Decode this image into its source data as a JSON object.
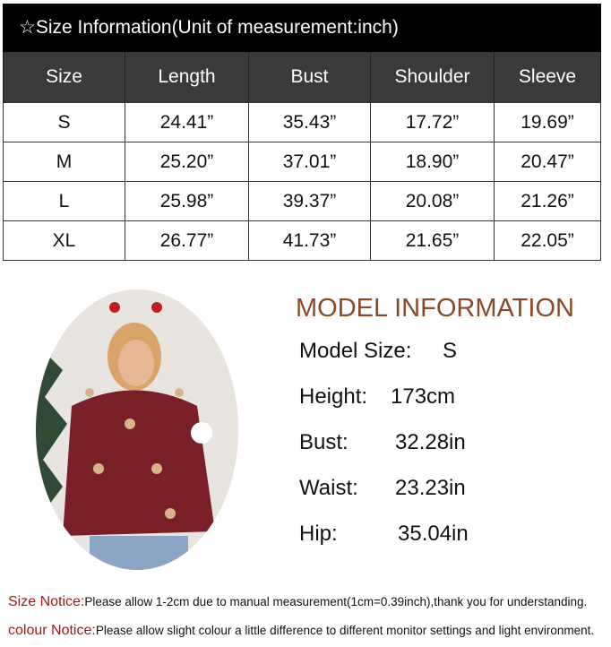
{
  "size_table": {
    "title": "☆Size Information(Unit of measurement:inch)",
    "headers": [
      "Size",
      "Length",
      "Bust",
      "Shoulder",
      "Sleeve"
    ],
    "rows": [
      [
        "S",
        "24.41”",
        "35.43”",
        "17.72”",
        "19.69”"
      ],
      [
        "M",
        "25.20”",
        "37.01”",
        "18.90”",
        "20.47”"
      ],
      [
        "L",
        "25.98”",
        "39.37”",
        "20.08”",
        "21.26”"
      ],
      [
        "XL",
        "26.77”",
        "41.73”",
        "21.65”",
        "22.05”"
      ]
    ]
  },
  "model": {
    "title": "MODEL INFORMATION",
    "lines": [
      {
        "label": "Model Size:",
        "value": "S"
      },
      {
        "label": "Height:",
        "value": "173cm"
      },
      {
        "label": "Bust:",
        "value": "32.28in"
      },
      {
        "label": "Waist:",
        "value": "23.23in"
      },
      {
        "label": "Hip:",
        "value": "35.04in"
      }
    ]
  },
  "notices": [
    {
      "label": "Size Notice:",
      "text": "Please allow 1-2cm due to manual measurement(1cm=0.39inch),thank you for understanding."
    },
    {
      "label": "colour Notice:",
      "text": "Please allow slight colour a little difference to different monitor settings and light environment."
    }
  ],
  "colors": {
    "title_bg": "#000000",
    "header_bg": "#3a3a3a",
    "model_title": "#8a4a28",
    "notice_label": "#a01a1a",
    "sweater": "#7a1e28"
  }
}
